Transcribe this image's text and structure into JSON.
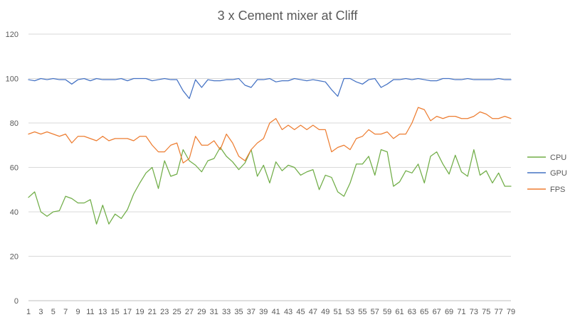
{
  "chart_data": {
    "type": "line",
    "title": "3 x Cement mixer at Cliff",
    "xlabel": "",
    "ylabel": "",
    "ylim": [
      0,
      120
    ],
    "yticks": [
      0,
      20,
      40,
      60,
      80,
      100,
      120
    ],
    "grid": "horizontal",
    "legend": "right",
    "x": [
      1,
      2,
      3,
      4,
      5,
      6,
      7,
      8,
      9,
      10,
      11,
      12,
      13,
      14,
      15,
      16,
      17,
      18,
      19,
      20,
      21,
      22,
      23,
      24,
      25,
      26,
      27,
      28,
      29,
      30,
      31,
      32,
      33,
      34,
      35,
      36,
      37,
      38,
      39,
      40,
      41,
      42,
      43,
      44,
      45,
      46,
      47,
      48,
      49,
      50,
      51,
      52,
      53,
      54,
      55,
      56,
      57,
      58,
      59,
      60,
      61,
      62,
      63,
      64,
      65,
      66,
      67,
      68,
      69,
      70,
      71,
      72,
      73,
      74,
      75,
      76,
      77,
      78,
      79
    ],
    "xtick_labels": [
      "1",
      "3",
      "5",
      "7",
      "9",
      "11",
      "13",
      "15",
      "17",
      "19",
      "21",
      "23",
      "25",
      "27",
      "29",
      "31",
      "33",
      "35",
      "37",
      "39",
      "41",
      "43",
      "45",
      "47",
      "49",
      "51",
      "53",
      "55",
      "57",
      "59",
      "61",
      "63",
      "65",
      "67",
      "69",
      "71",
      "73",
      "75",
      "77",
      "79"
    ],
    "series": [
      {
        "name": "CPU",
        "color": "#70ad47",
        "values": [
          46.5,
          49,
          40,
          38,
          40,
          40.5,
          47,
          46,
          44,
          44,
          45.5,
          34.5,
          43,
          34.5,
          39,
          37,
          41,
          48,
          53,
          57.5,
          60,
          50.5,
          63,
          56,
          57,
          68,
          63,
          61,
          58,
          63,
          64,
          69,
          65,
          62.5,
          59,
          62,
          68,
          56,
          61,
          53,
          62.5,
          58.5,
          61,
          60,
          56.5,
          58,
          59,
          50,
          56.5,
          55.5,
          49,
          47,
          53,
          61.5,
          61.5,
          65,
          56.5,
          68,
          67,
          51.5,
          53.5,
          58.5,
          57.5,
          61.5,
          53,
          65,
          67,
          61.5,
          57,
          65.5,
          58,
          56,
          68,
          56.5,
          58.5,
          53,
          57.5,
          51.5,
          51.5
        ]
      },
      {
        "name": "GPU",
        "color": "#4472c4",
        "values": [
          99.5,
          99,
          100,
          99.5,
          100,
          99.5,
          99.5,
          97.5,
          99.5,
          100,
          99,
          100,
          99.5,
          99.5,
          99.5,
          100,
          99,
          100,
          100,
          100,
          99,
          99.5,
          100,
          99.5,
          99.5,
          94.5,
          91,
          99.5,
          96,
          99.5,
          99,
          99,
          99.5,
          99.5,
          100,
          97,
          96,
          99.5,
          99.5,
          100,
          98.5,
          99,
          99,
          100,
          99.5,
          99,
          99.5,
          99,
          98.5,
          95,
          92,
          100,
          100,
          98.5,
          97.5,
          99.5,
          100,
          96,
          97.5,
          99.5,
          99.5,
          100,
          99.5,
          100,
          99.5,
          99,
          99,
          100,
          100,
          99.5,
          99.5,
          100,
          99.5,
          99.5,
          99.5,
          99.5,
          100,
          99.5,
          99.5
        ]
      },
      {
        "name": "FPS",
        "color": "#ed7d31",
        "values": [
          75,
          76,
          75,
          76,
          75,
          74,
          75,
          71,
          74,
          74,
          73,
          72,
          74,
          72,
          73,
          73,
          73,
          72,
          74,
          74,
          70,
          67,
          67,
          70,
          71,
          62,
          64,
          74,
          70,
          70,
          72,
          68,
          75,
          71,
          65,
          63,
          68,
          71,
          73,
          80,
          82,
          77,
          79,
          77,
          79,
          77,
          79,
          77,
          77,
          67,
          69,
          70,
          68,
          73,
          74,
          77,
          75,
          75,
          76,
          73,
          75,
          75,
          80,
          87,
          86,
          81,
          83,
          82,
          83,
          83,
          82,
          82,
          83,
          85,
          84,
          82,
          82,
          83,
          82
        ]
      }
    ]
  }
}
